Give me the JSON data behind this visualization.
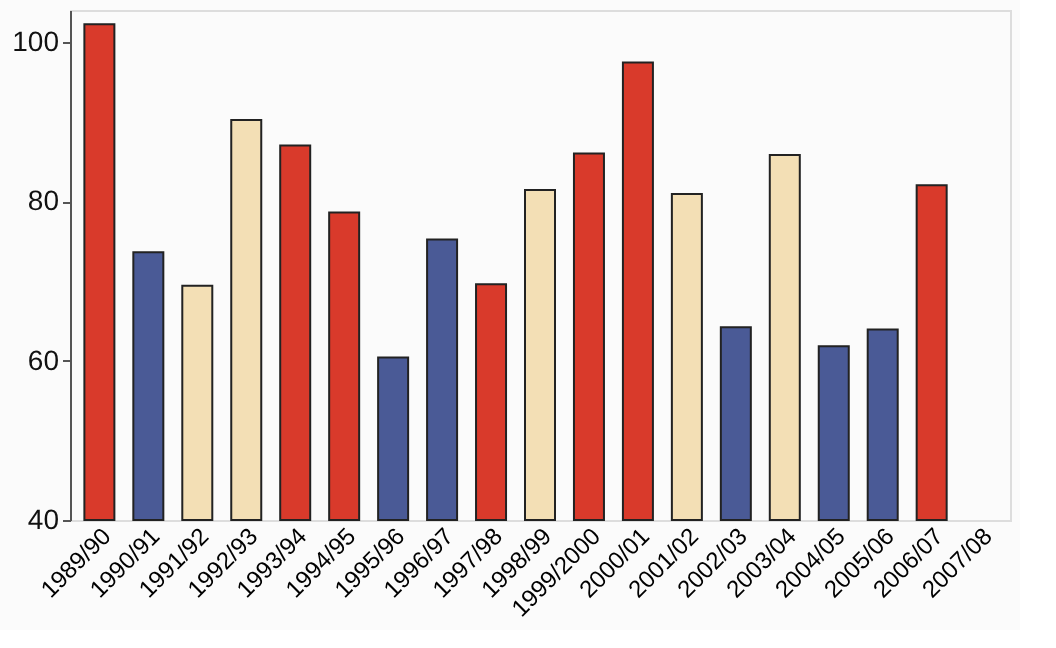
{
  "chart_data": {
    "type": "bar",
    "categories": [
      "1989/90",
      "1990/91",
      "1991/92",
      "1992/93",
      "1993/94",
      "1994/95",
      "1995/96",
      "1996/97",
      "1997/98",
      "1998/99",
      "1999/2000",
      "2000/01",
      "2001/02",
      "2002/03",
      "2003/04",
      "2004/05",
      "2005/06",
      "2006/07",
      "2007/08"
    ],
    "values": [
      102.2,
      73.6,
      69.4,
      90.2,
      87.0,
      78.6,
      60.4,
      75.2,
      69.6,
      81.4,
      86.0,
      97.4,
      80.9,
      64.2,
      85.8,
      61.8,
      63.9,
      82.0,
      null
    ],
    "colors": [
      "#d93a2b",
      "#4a5a96",
      "#f3dfb5",
      "#f3dfb5",
      "#d93a2b",
      "#d93a2b",
      "#4a5a96",
      "#4a5a96",
      "#d93a2b",
      "#f3dfb5",
      "#d93a2b",
      "#d93a2b",
      "#f3dfb5",
      "#4a5a96",
      "#f3dfb5",
      "#4a5a96",
      "#4a5a96",
      "#d93a2b",
      null
    ],
    "ylim": [
      40,
      104
    ],
    "yticks": [
      40,
      60,
      80,
      100
    ],
    "grid": false
  }
}
